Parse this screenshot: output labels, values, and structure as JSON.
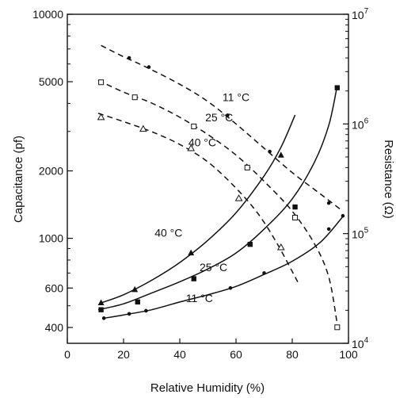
{
  "chart_data": {
    "type": "line",
    "xlabel": "Relative Humidity (%)",
    "ylabel_left": "Capacitance (pf)",
    "ylabel_right": "Resistance (Ω)",
    "xlim": [
      0,
      100
    ],
    "ylim_left": [
      340,
      10000
    ],
    "ylim_right": [
      10000,
      10000000
    ],
    "left_scale": "log",
    "right_scale": "log",
    "x_ticks": [
      {
        "value": 0,
        "label": "0"
      },
      {
        "value": 20,
        "label": "20"
      },
      {
        "value": 40,
        "label": "40"
      },
      {
        "value": 60,
        "label": "60"
      },
      {
        "value": 80,
        "label": "80"
      },
      {
        "value": 100,
        "label": "100"
      }
    ],
    "left_ticks": [
      {
        "value": 400,
        "label": "400"
      },
      {
        "value": 600,
        "label": "600"
      },
      {
        "value": 1000,
        "label": "1000"
      },
      {
        "value": 2000,
        "label": "2000"
      },
      {
        "value": 5000,
        "label": "5000"
      },
      {
        "value": 10000,
        "label": "10000"
      }
    ],
    "right_ticks": [
      {
        "value": 10000,
        "base": "10",
        "exp": "4"
      },
      {
        "value": 100000,
        "base": "10",
        "exp": "5"
      },
      {
        "value": 1000000,
        "base": "10",
        "exp": "6"
      },
      {
        "value": 10000000,
        "base": "10",
        "exp": "7"
      }
    ],
    "series": [
      {
        "label": "11 °C",
        "quantity": "resistance",
        "axis": "right",
        "style": "dashed",
        "marker": "dot",
        "curve": [
          [
            12,
            5200000
          ],
          [
            20,
            4100000
          ],
          [
            28,
            3300000
          ],
          [
            40,
            2300000
          ],
          [
            50,
            1600000
          ],
          [
            60,
            1000000
          ],
          [
            70,
            600000
          ],
          [
            80,
            360000
          ],
          [
            90,
            230000
          ],
          [
            98,
            160000
          ]
        ],
        "points": [
          [
            22,
            4000000
          ],
          [
            29,
            3300000
          ],
          [
            57,
            1200000
          ],
          [
            72,
            560000
          ],
          [
            93,
            190000
          ]
        ],
        "label_pos": [
          60,
          1750000
        ]
      },
      {
        "label": "25 °C",
        "quantity": "resistance",
        "axis": "right",
        "style": "dashed",
        "marker": "square-open",
        "curve": [
          [
            11,
            2500000
          ],
          [
            20,
            1950000
          ],
          [
            30,
            1550000
          ],
          [
            40,
            1150000
          ],
          [
            50,
            800000
          ],
          [
            60,
            520000
          ],
          [
            70,
            300000
          ],
          [
            80,
            160000
          ],
          [
            88,
            80000
          ],
          [
            93,
            40000
          ],
          [
            96,
            15000
          ]
        ],
        "points": [
          [
            12,
            2400000
          ],
          [
            24,
            1750000
          ],
          [
            45,
            950000
          ],
          [
            64,
            400000
          ],
          [
            81,
            140000
          ],
          [
            96,
            14000
          ]
        ],
        "label_pos": [
          54,
          1150000
        ]
      },
      {
        "label": "40 °C",
        "quantity": "resistance",
        "axis": "right",
        "style": "dashed",
        "marker": "triangle-open",
        "curve": [
          [
            11,
            1250000
          ],
          [
            20,
            1050000
          ],
          [
            30,
            850000
          ],
          [
            40,
            650000
          ],
          [
            50,
            450000
          ],
          [
            60,
            260000
          ],
          [
            68,
            150000
          ],
          [
            75,
            78000
          ],
          [
            82,
            36000
          ]
        ],
        "points": [
          [
            12,
            1150000
          ],
          [
            27,
            900000
          ],
          [
            44,
            600000
          ],
          [
            61,
            210000
          ],
          [
            76,
            75000
          ]
        ],
        "label_pos": [
          48,
          680000
        ]
      },
      {
        "label": "40 °C",
        "quantity": "capacitance",
        "axis": "left",
        "style": "solid",
        "marker": "triangle-filled",
        "curve": [
          [
            12,
            515
          ],
          [
            20,
            560
          ],
          [
            30,
            650
          ],
          [
            40,
            780
          ],
          [
            50,
            980
          ],
          [
            60,
            1300
          ],
          [
            70,
            1900
          ],
          [
            76,
            2550
          ],
          [
            81,
            3550
          ]
        ],
        "points": [
          [
            12,
            515
          ],
          [
            24,
            590
          ],
          [
            44,
            860
          ],
          [
            76,
            2350
          ]
        ],
        "label_pos": [
          36,
          1060
        ]
      },
      {
        "label": "25 °C",
        "quantity": "capacitance",
        "axis": "left",
        "style": "solid",
        "marker": "square-filled",
        "curve": [
          [
            11,
            480
          ],
          [
            20,
            510
          ],
          [
            30,
            570
          ],
          [
            40,
            640
          ],
          [
            50,
            730
          ],
          [
            60,
            860
          ],
          [
            70,
            1100
          ],
          [
            80,
            1500
          ],
          [
            88,
            2200
          ],
          [
            93,
            3200
          ],
          [
            96,
            4800
          ]
        ],
        "points": [
          [
            12,
            480
          ],
          [
            25,
            520
          ],
          [
            45,
            660
          ],
          [
            65,
            940
          ],
          [
            81,
            1380
          ],
          [
            96,
            4700
          ]
        ],
        "label_pos": [
          52,
          742
        ]
      },
      {
        "label": "11 °C",
        "quantity": "capacitance",
        "axis": "left",
        "style": "solid",
        "marker": "dot",
        "curve": [
          [
            13,
            440
          ],
          [
            20,
            455
          ],
          [
            30,
            480
          ],
          [
            40,
            520
          ],
          [
            50,
            560
          ],
          [
            60,
            610
          ],
          [
            70,
            690
          ],
          [
            80,
            790
          ],
          [
            90,
            960
          ],
          [
            98,
            1250
          ]
        ],
        "points": [
          [
            13,
            440
          ],
          [
            22,
            460
          ],
          [
            28,
            475
          ],
          [
            58,
            600
          ],
          [
            70,
            700
          ],
          [
            93,
            1100
          ],
          [
            98,
            1260
          ]
        ],
        "label_pos": [
          47,
          540
        ]
      }
    ]
  }
}
